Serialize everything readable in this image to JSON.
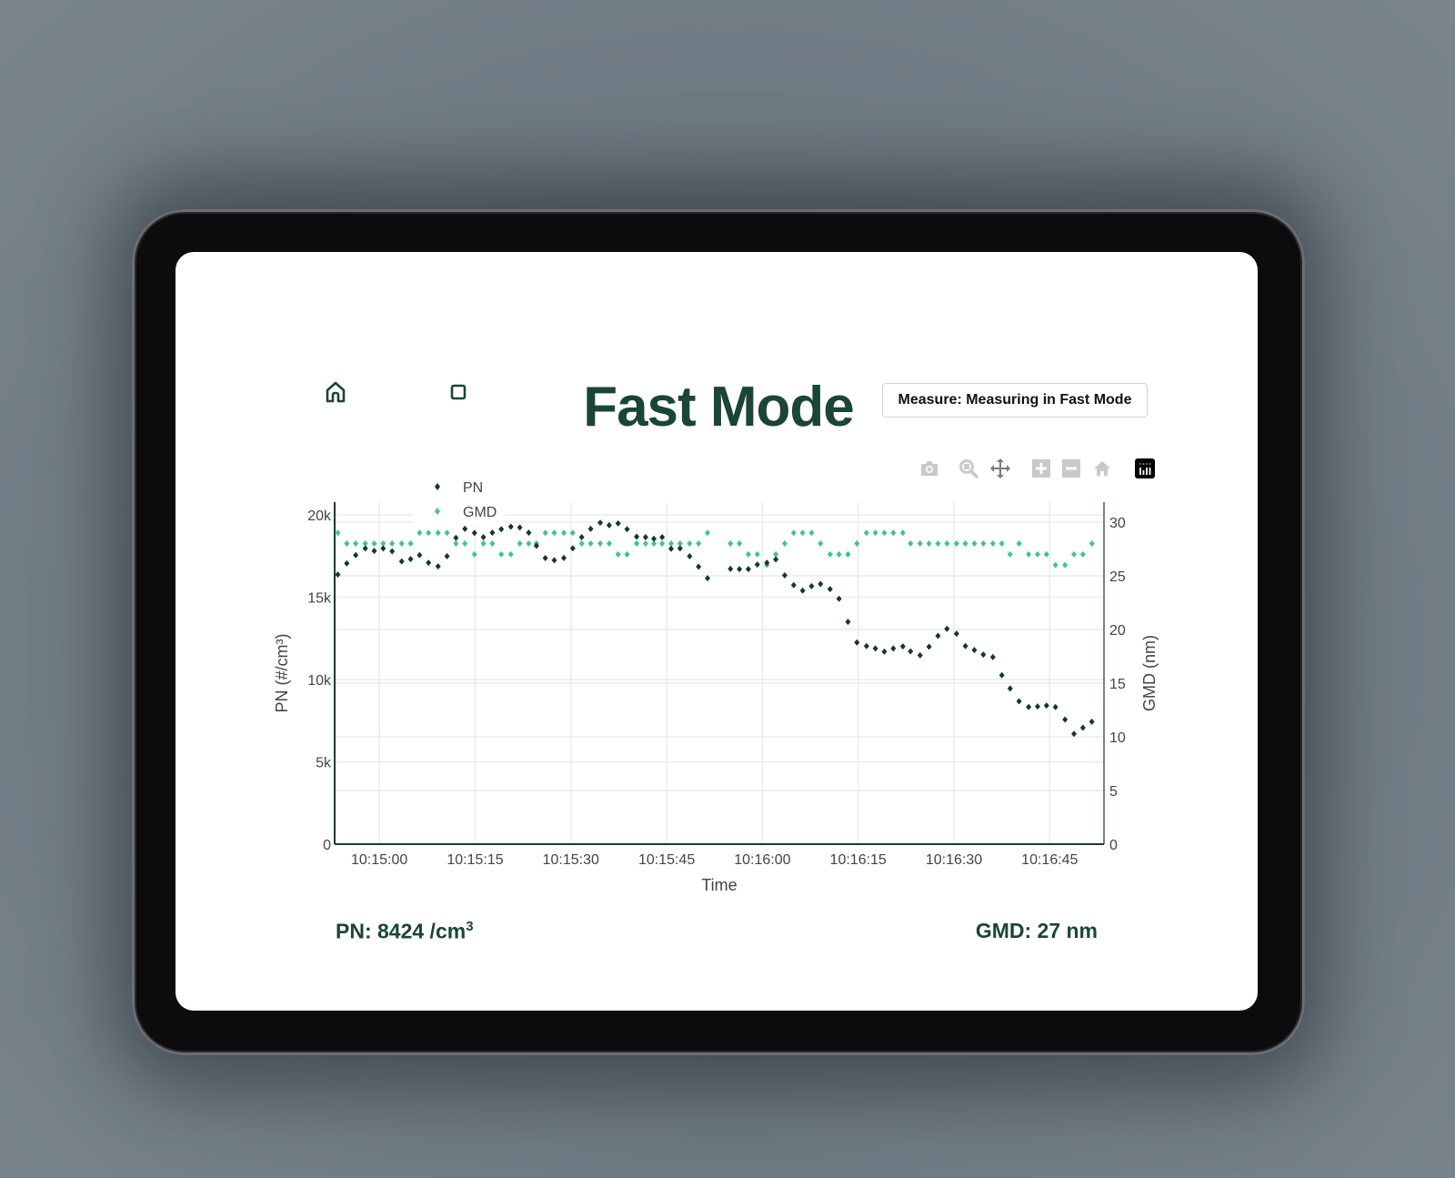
{
  "header": {
    "title": "Fast Mode",
    "status_button": "Measure: Measuring in Fast Mode",
    "home_icon": "home-icon",
    "stop_icon": "stop-square-icon"
  },
  "toolbar": {
    "icons": [
      "camera-icon",
      "zoom-icon",
      "pan-icon",
      "zoom-in-icon",
      "zoom-out-icon",
      "reset-axes-home-icon",
      "plotly-logo-icon"
    ]
  },
  "readouts": {
    "pn_label": "PN: 8424 /cm",
    "pn_sup": "3",
    "gmd_label": "GMD: 27 nm"
  },
  "colors": {
    "pn": "#14382d",
    "gmd": "#3cc68a",
    "title": "#1b4536"
  },
  "chart_data": {
    "type": "scatter",
    "xlabel": "Time",
    "ylabel": "PN (#/cm³)",
    "y2label": "GMD (nm)",
    "xlim": [
      "10:14:53.0",
      "10:16:53.5"
    ],
    "ylim": [
      0,
      20770
    ],
    "y2lim": [
      0,
      31.86
    ],
    "x_ticks": [
      "10:15:00",
      "10:15:15",
      "10:15:30",
      "10:15:45",
      "10:16:00",
      "10:16:15",
      "10:16:30",
      "10:16:45"
    ],
    "y_ticks": [
      {
        "v": 0,
        "label": "0"
      },
      {
        "v": 5000,
        "label": "5k"
      },
      {
        "v": 10000,
        "label": "10k"
      },
      {
        "v": 15000,
        "label": "15k"
      },
      {
        "v": 20000,
        "label": "20k"
      }
    ],
    "y2_ticks": [
      {
        "v": 0,
        "label": "0"
      },
      {
        "v": 5,
        "label": "5"
      },
      {
        "v": 10,
        "label": "10"
      },
      {
        "v": 15,
        "label": "15"
      },
      {
        "v": 20,
        "label": "20"
      },
      {
        "v": 25,
        "label": "25"
      },
      {
        "v": 30,
        "label": "30"
      }
    ],
    "grid": true,
    "legend_position": "top-left",
    "x": [
      "10:14:53.5",
      "10:14:54.9",
      "10:14:56.3",
      "10:14:57.8",
      "10:14:59.2",
      "10:15:00.6",
      "10:15:02.0",
      "10:15:03.5",
      "10:15:04.9",
      "10:15:06.3",
      "10:15:07.7",
      "10:15:09.2",
      "10:15:10.6",
      "10:15:12.0",
      "10:15:13.4",
      "10:15:14.9",
      "10:15:16.3",
      "10:15:17.7",
      "10:15:19.1",
      "10:15:20.6",
      "10:15:22.0",
      "10:15:23.4",
      "10:15:24.6",
      "10:15:26.0",
      "10:15:27.4",
      "10:15:28.9",
      "10:15:30.3",
      "10:15:31.7",
      "10:15:33.1",
      "10:15:34.6",
      "10:15:36.0",
      "10:15:37.4",
      "10:15:38.8",
      "10:15:40.3",
      "10:15:41.7",
      "10:15:43.0",
      "10:15:44.3",
      "10:15:45.7",
      "10:15:47.1",
      "10:15:48.6",
      "10:15:50.0",
      "10:15:51.4",
      "10:15:55.0",
      "10:15:56.4",
      "10:15:57.8",
      "10:15:59.2",
      "10:16:00.7",
      "10:16:02.1",
      "10:16:03.5",
      "10:16:04.9",
      "10:16:06.3",
      "10:16:07.7",
      "10:16:09.1",
      "10:16:10.6",
      "10:16:12.0",
      "10:16:13.4",
      "10:16:14.8",
      "10:16:16.3",
      "10:16:17.7",
      "10:16:19.1",
      "10:16:20.5",
      "10:16:22.0",
      "10:16:23.2",
      "10:16:24.7",
      "10:16:26.1",
      "10:16:27.5",
      "10:16:28.9",
      "10:16:30.4",
      "10:16:31.8",
      "10:16:33.2",
      "10:16:34.6",
      "10:16:36.1",
      "10:16:37.5",
      "10:16:38.8",
      "10:16:40.2",
      "10:16:41.7",
      "10:16:43.1",
      "10:16:44.5",
      "10:16:45.9",
      "10:16:47.4",
      "10:16:48.8",
      "10:16:50.2",
      "10:16:51.6"
    ],
    "series": [
      {
        "name": "PN",
        "axis": "y",
        "values": [
          16370,
          17050,
          17550,
          17960,
          17810,
          17960,
          17790,
          17170,
          17310,
          17550,
          17090,
          16870,
          17480,
          18600,
          19150,
          18900,
          18640,
          18910,
          19130,
          19280,
          19230,
          18910,
          18120,
          17370,
          17240,
          17380,
          17970,
          18640,
          19150,
          19520,
          19370,
          19480,
          19130,
          18670,
          18640,
          18550,
          18640,
          17940,
          17960,
          17480,
          16850,
          16150,
          16720,
          16700,
          16700,
          16980,
          17090,
          17290,
          16320,
          15730,
          15400,
          15670,
          15800,
          15490,
          14900,
          13500,
          12250,
          12030,
          11880,
          11690,
          11880,
          12010,
          11710,
          11470,
          11990,
          12650,
          13080,
          12780,
          12030,
          11790,
          11510,
          11360,
          10260,
          9450,
          8670,
          8330,
          8360,
          8420,
          8330,
          7570,
          6700,
          7070,
          7440
        ]
      },
      {
        "name": "GMD",
        "axis": "y2",
        "values": [
          29,
          28,
          28,
          28,
          28,
          28,
          28,
          28,
          28,
          29,
          29,
          29,
          29,
          28,
          28,
          27,
          28,
          28,
          27,
          27,
          28,
          28,
          28,
          29,
          29,
          29,
          29,
          28,
          28,
          28,
          28,
          27,
          27,
          28,
          28,
          28,
          28,
          28,
          28,
          28,
          28,
          29,
          28,
          28,
          27,
          27,
          26,
          27,
          28,
          29,
          29,
          29,
          28,
          27,
          27,
          27,
          28,
          29,
          29,
          29,
          29,
          29,
          28,
          28,
          28,
          28,
          28,
          28,
          28,
          28,
          28,
          28,
          28,
          27,
          28,
          27,
          27,
          27,
          26,
          26,
          27,
          27,
          28
        ]
      }
    ]
  }
}
